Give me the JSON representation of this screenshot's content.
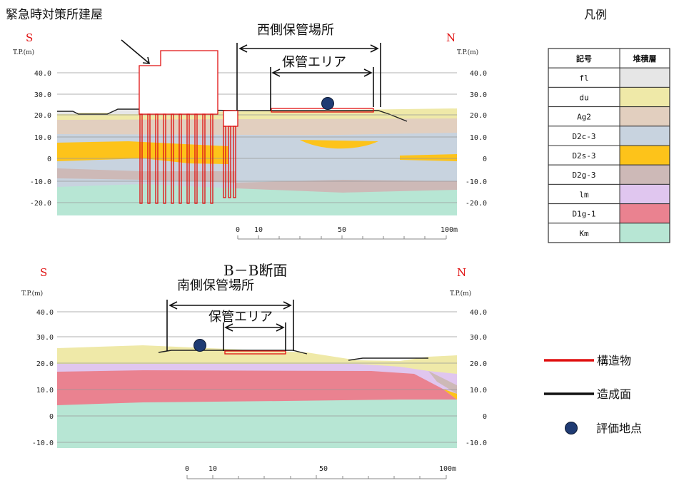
{
  "section_a": {
    "building_label": "緊急時対策所建屋",
    "storage_label": "西側保管場所",
    "area_label": "保管エリア",
    "south": "S",
    "north": "N",
    "tp_left": "T.P.(m)",
    "tp_right": "T.P.(m)",
    "elevations": [
      "40.0",
      "30.0",
      "20.0",
      "10.0",
      "0",
      "-10.0",
      "-20.0"
    ],
    "scale": [
      "0",
      "10",
      "50",
      "100m"
    ]
  },
  "section_b": {
    "title": "B－B断面",
    "storage_label": "南側保管場所",
    "area_label": "保管エリア",
    "south": "S",
    "north": "N",
    "tp_left": "T.P.(m)",
    "tp_right": "T.P.(m)",
    "elevations": [
      "40.0",
      "30.0",
      "20.0",
      "10.0",
      "0",
      "-10.0"
    ],
    "scale": [
      "0",
      "10",
      "50",
      "100m"
    ]
  },
  "legend": {
    "title": "凡例",
    "header_symbol": "記号",
    "header_layer": "堆積層",
    "layers": [
      {
        "code": "fl",
        "color": "#e6e6e6"
      },
      {
        "code": "du",
        "color": "#efe9a8"
      },
      {
        "code": "Ag2",
        "color": "#e2cfbf"
      },
      {
        "code": "D2c-3",
        "color": "#c8d3df"
      },
      {
        "code": "D2s-3",
        "color": "#fdc31a"
      },
      {
        "code": "D2g-3",
        "color": "#cdb9b7"
      },
      {
        "code": "lm",
        "color": "#e0c6ef"
      },
      {
        "code": "D1g-1",
        "color": "#ea8290"
      },
      {
        "code": "Km",
        "color": "#b7e6d4"
      }
    ],
    "structure_label": "構造物",
    "structure_color": "#e01010",
    "surface_label": "造成面",
    "surface_color": "#111111",
    "point_label": "評価地点",
    "point_color": "#1f3b73"
  }
}
